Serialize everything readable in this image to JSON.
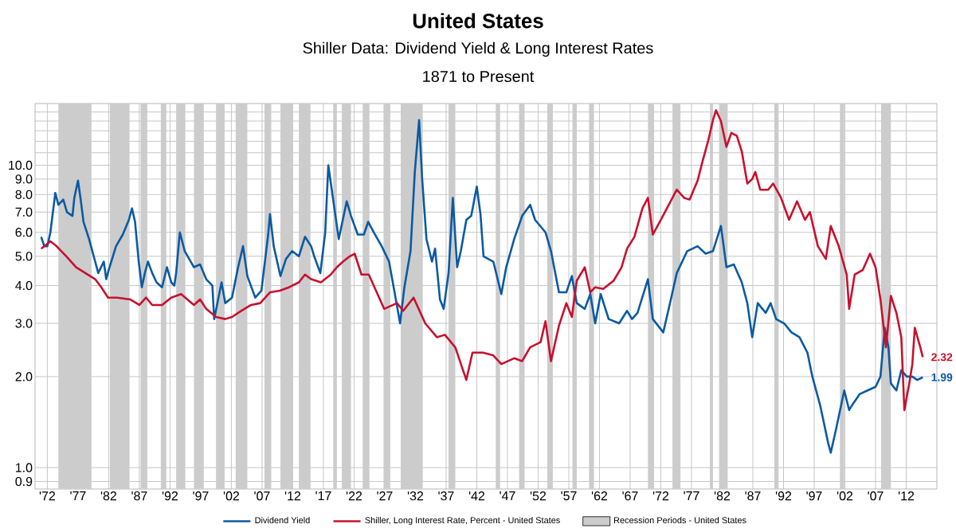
{
  "chart_data": {
    "type": "line",
    "title": "United States",
    "subtitle": "Shiller Data: Dividend Yield & Long Interest Rates",
    "annotations": [
      "1871 to Present",
      {
        "text": "2.32",
        "x": 2014.7,
        "y": 2.32
      },
      {
        "text": "1.99",
        "x": 2014.7,
        "y": 1.99
      }
    ],
    "log": "y",
    "grid": true,
    "legend": "bottom",
    "marker": "none",
    "line_style": "solid",
    "xlim": [
      1870,
      2017
    ],
    "xticks": [
      {
        "value": 1872,
        "label": "'72"
      },
      {
        "value": 1877,
        "label": "'77"
      },
      {
        "value": 1882,
        "label": "'82"
      },
      {
        "value": 1887,
        "label": "'87"
      },
      {
        "value": 1892,
        "label": "'92"
      },
      {
        "value": 1897,
        "label": "'97"
      },
      {
        "value": 1902,
        "label": "'02"
      },
      {
        "value": 1907,
        "label": "'07"
      },
      {
        "value": 1912,
        "label": "'12"
      },
      {
        "value": 1917,
        "label": "'17"
      },
      {
        "value": 1922,
        "label": "'22"
      },
      {
        "value": 1927,
        "label": "'27"
      },
      {
        "value": 1932,
        "label": "'32"
      },
      {
        "value": 1937,
        "label": "'37"
      },
      {
        "value": 1942,
        "label": "'42"
      },
      {
        "value": 1947,
        "label": "'47"
      },
      {
        "value": 1952,
        "label": "'52"
      },
      {
        "value": 1957,
        "label": "'57"
      },
      {
        "value": 1962,
        "label": "'62"
      },
      {
        "value": 1967,
        "label": "'67"
      },
      {
        "value": 1972,
        "label": "'72"
      },
      {
        "value": 1977,
        "label": "'77"
      },
      {
        "value": 1982,
        "label": "'82"
      },
      {
        "value": 1987,
        "label": "'87"
      },
      {
        "value": 1992,
        "label": "'92"
      },
      {
        "value": 1997,
        "label": "'97"
      },
      {
        "value": 2002,
        "label": "'02"
      },
      {
        "value": 2007,
        "label": "'07"
      },
      {
        "value": 2012,
        "label": "'12"
      }
    ],
    "ylim": [
      0.85,
      16
    ],
    "yticks": [
      0.9,
      {
        "value": 1,
        "label": "1.0"
      },
      {
        "value": 2,
        "label": "2.0"
      },
      {
        "value": 3,
        "label": "3.0"
      },
      {
        "value": 4,
        "label": "4.0"
      },
      {
        "value": 5,
        "label": "5.0"
      },
      {
        "value": 6,
        "label": "6.0"
      },
      {
        "value": 7,
        "label": "7.0"
      },
      {
        "value": 8,
        "label": "8.0"
      },
      {
        "value": 9,
        "label": "9.0"
      },
      {
        "value": 10,
        "label": "10.0"
      },
      {
        "value": 11,
        "label": null
      },
      {
        "value": 12,
        "label": null
      },
      {
        "value": 13,
        "label": null
      },
      {
        "value": 14,
        "label": null
      },
      {
        "value": 15,
        "label": null
      }
    ],
    "series": [
      {
        "name": "Dividend Yield",
        "color": "#0b5aa2",
        "x": [
          1871.0,
          1871.5,
          1872.0,
          1872.5,
          1873.3,
          1873.8,
          1874.6,
          1875.2,
          1876.1,
          1876.4,
          1877.0,
          1877.4,
          1877.9,
          1878.8,
          1879.8,
          1880.3,
          1881.2,
          1881.6,
          1882.0,
          1883.2,
          1884.3,
          1885.3,
          1885.8,
          1886.3,
          1886.9,
          1887.4,
          1887.9,
          1888.4,
          1889.1,
          1889.8,
          1890.7,
          1891.5,
          1892.2,
          1892.7,
          1893.0,
          1893.6,
          1894.4,
          1895.9,
          1896.9,
          1897.9,
          1898.9,
          1899.2,
          1900.4,
          1901.0,
          1902.1,
          1903.1,
          1903.9,
          1904.6,
          1905.9,
          1906.9,
          1908.0,
          1908.3,
          1908.9,
          1910.0,
          1910.9,
          1911.9,
          1913.0,
          1914.0,
          1915.0,
          1915.5,
          1916.5,
          1917.3,
          1917.8,
          1919.5,
          1920.8,
          1921.5,
          1922.6,
          1923.6,
          1924.3,
          1925.2,
          1926.5,
          1927.7,
          1928.6,
          1929.5,
          1930.2,
          1931.2,
          1931.9,
          1932.6,
          1933.1,
          1933.8,
          1934.7,
          1935.2,
          1936.0,
          1936.6,
          1937.4,
          1938.1,
          1938.8,
          1939.4,
          1940.3,
          1941.1,
          1942.0,
          1942.6,
          1943.1,
          1944.7,
          1946.0,
          1946.8,
          1948.1,
          1949.4,
          1950.7,
          1951.5,
          1953.2,
          1954.1,
          1955.4,
          1956.6,
          1957.5,
          1958.3,
          1959.6,
          1960.5,
          1961.3,
          1962.2,
          1963.5,
          1965.2,
          1966.5,
          1967.3,
          1968.2,
          1969.9,
          1970.7,
          1972.4,
          1973.7,
          1974.6,
          1976.3,
          1978.0,
          1979.3,
          1980.5,
          1981.8,
          1982.7,
          1983.9,
          1985.2,
          1986.1,
          1986.9,
          1987.8,
          1989.1,
          1989.9,
          1990.8,
          1992.1,
          1993.3,
          1994.6,
          1995.9,
          1996.7,
          1998.0,
          1999.3,
          1999.7,
          2000.6,
          2001.9,
          2002.7,
          2003.1,
          2004.4,
          2005.7,
          2007.0,
          2007.8,
          2008.5,
          2009.1,
          2009.5,
          2010.4,
          2011.2,
          2012.1,
          2013.0,
          2013.8,
          2014.7
        ],
        "values": [
          5.8,
          5.4,
          5.4,
          6.0,
          8.1,
          7.4,
          7.7,
          7.0,
          6.8,
          7.8,
          8.9,
          7.8,
          6.5,
          5.7,
          4.8,
          4.4,
          4.8,
          4.2,
          4.5,
          5.4,
          5.9,
          6.6,
          7.2,
          6.5,
          4.8,
          3.95,
          4.4,
          4.8,
          4.4,
          4.1,
          3.95,
          4.6,
          4.1,
          4.0,
          4.4,
          6.0,
          5.2,
          4.6,
          4.7,
          4.2,
          4.0,
          3.1,
          4.1,
          3.5,
          3.65,
          4.6,
          5.4,
          4.3,
          3.65,
          3.85,
          5.9,
          6.9,
          5.4,
          4.3,
          4.9,
          5.2,
          5.0,
          5.8,
          5.4,
          5.0,
          4.4,
          6.0,
          10.0,
          5.7,
          7.6,
          6.8,
          5.9,
          5.9,
          6.5,
          6.0,
          5.4,
          4.8,
          3.8,
          3.0,
          3.95,
          5.2,
          9.5,
          14.1,
          9.0,
          5.7,
          4.8,
          5.3,
          3.6,
          3.35,
          4.4,
          7.8,
          4.6,
          5.2,
          6.6,
          6.8,
          8.5,
          6.9,
          5.0,
          4.8,
          3.75,
          4.6,
          5.7,
          6.8,
          7.4,
          6.6,
          6.0,
          5.2,
          3.8,
          3.8,
          4.3,
          3.5,
          3.35,
          3.75,
          3.0,
          3.75,
          3.1,
          3.0,
          3.3,
          3.1,
          3.25,
          4.2,
          3.1,
          2.8,
          3.65,
          4.4,
          5.2,
          5.4,
          5.1,
          5.2,
          6.3,
          4.6,
          4.7,
          4.1,
          3.5,
          2.7,
          3.5,
          3.25,
          3.5,
          3.1,
          3.0,
          2.8,
          2.7,
          2.4,
          2.0,
          1.6,
          1.2,
          1.12,
          1.35,
          1.8,
          1.55,
          1.6,
          1.75,
          1.8,
          1.85,
          2.0,
          2.9,
          2.5,
          1.9,
          1.8,
          2.1,
          2.0,
          2.0,
          1.95,
          1.99
        ]
      },
      {
        "name": "Shiller, Long Interest Rate, Percent - United States",
        "color": "#c8102e",
        "x": [
          1871.0,
          1872.5,
          1873.5,
          1875.1,
          1876.7,
          1878.2,
          1879.8,
          1880.8,
          1881.9,
          1883.4,
          1885.5,
          1887.0,
          1888.1,
          1889.1,
          1890.7,
          1892.2,
          1893.8,
          1895.9,
          1896.9,
          1897.9,
          1899.5,
          1901.0,
          1902.1,
          1903.6,
          1905.2,
          1906.7,
          1908.3,
          1909.9,
          1911.4,
          1913.0,
          1914.0,
          1915.0,
          1916.6,
          1918.2,
          1919.2,
          1920.2,
          1921.3,
          1922.1,
          1923.2,
          1924.4,
          1926.9,
          1929.0,
          1930.0,
          1931.7,
          1933.6,
          1935.5,
          1936.8,
          1938.5,
          1940.3,
          1941.3,
          1943.0,
          1944.7,
          1946.0,
          1948.1,
          1949.4,
          1950.7,
          1952.4,
          1953.2,
          1954.1,
          1955.4,
          1956.6,
          1957.5,
          1958.3,
          1959.6,
          1960.5,
          1961.3,
          1962.6,
          1964.3,
          1965.6,
          1966.5,
          1967.7,
          1969.0,
          1969.9,
          1970.7,
          1972.0,
          1973.3,
          1974.6,
          1975.8,
          1976.7,
          1978.0,
          1978.8,
          1979.7,
          1980.5,
          1981.0,
          1981.8,
          1982.7,
          1983.5,
          1984.4,
          1985.2,
          1986.1,
          1986.9,
          1987.4,
          1988.2,
          1989.5,
          1990.3,
          1991.6,
          1992.9,
          1994.2,
          1995.5,
          1996.3,
          1997.6,
          1998.9,
          1999.7,
          2001.0,
          2002.3,
          2002.7,
          2003.6,
          2004.9,
          2006.1,
          2007.0,
          2007.8,
          2008.7,
          2009.5,
          2010.4,
          2011.2,
          2011.7,
          2012.5,
          2013.0,
          2013.4,
          2014.3,
          2014.7
        ],
        "values": [
          5.3,
          5.6,
          5.4,
          5.0,
          4.6,
          4.4,
          4.2,
          3.95,
          3.65,
          3.65,
          3.6,
          3.45,
          3.65,
          3.45,
          3.45,
          3.65,
          3.75,
          3.45,
          3.6,
          3.35,
          3.15,
          3.1,
          3.15,
          3.3,
          3.45,
          3.5,
          3.8,
          3.85,
          3.95,
          4.1,
          4.35,
          4.2,
          4.1,
          4.35,
          4.6,
          4.8,
          5.0,
          5.1,
          4.35,
          4.35,
          3.35,
          3.5,
          3.3,
          3.65,
          3.0,
          2.7,
          2.75,
          2.5,
          1.95,
          2.4,
          2.4,
          2.35,
          2.2,
          2.3,
          2.25,
          2.5,
          2.6,
          3.05,
          2.25,
          2.95,
          3.5,
          3.15,
          4.15,
          4.6,
          3.8,
          3.95,
          3.9,
          4.15,
          4.6,
          5.3,
          5.8,
          7.2,
          7.8,
          5.9,
          6.6,
          7.4,
          8.3,
          7.8,
          7.7,
          8.9,
          10.3,
          12.0,
          14.1,
          15.2,
          14.0,
          11.5,
          12.8,
          12.5,
          11.1,
          8.7,
          9.0,
          9.5,
          8.3,
          8.3,
          8.7,
          7.8,
          6.6,
          7.6,
          6.6,
          7.0,
          5.4,
          4.9,
          6.3,
          5.4,
          4.35,
          3.35,
          4.35,
          4.5,
          5.1,
          4.6,
          3.6,
          2.5,
          3.7,
          3.25,
          2.7,
          1.55,
          1.9,
          2.2,
          2.9,
          2.5,
          2.32
        ]
      }
    ],
    "bands": [
      {
        "axis": "x",
        "from": 1873.8,
        "to": 1879.2,
        "label": "Recession Periods - United States",
        "color": "#cccccc"
      },
      {
        "axis": "x",
        "from": 1882.2,
        "to": 1885.4,
        "color": "#cccccc"
      },
      {
        "axis": "x",
        "from": 1887.2,
        "to": 1888.3,
        "color": "#cccccc"
      },
      {
        "axis": "x",
        "from": 1890.5,
        "to": 1891.4,
        "color": "#cccccc"
      },
      {
        "axis": "x",
        "from": 1893.0,
        "to": 1894.5,
        "color": "#cccccc"
      },
      {
        "axis": "x",
        "from": 1895.9,
        "to": 1897.5,
        "color": "#cccccc"
      },
      {
        "axis": "x",
        "from": 1899.5,
        "to": 1900.9,
        "color": "#cccccc"
      },
      {
        "axis": "x",
        "from": 1902.7,
        "to": 1904.6,
        "color": "#cccccc"
      },
      {
        "axis": "x",
        "from": 1907.4,
        "to": 1908.5,
        "color": "#cccccc"
      },
      {
        "axis": "x",
        "from": 1910.0,
        "to": 1912.0,
        "color": "#cccccc"
      },
      {
        "axis": "x",
        "from": 1913.0,
        "to": 1914.9,
        "color": "#cccccc"
      },
      {
        "axis": "x",
        "from": 1918.6,
        "to": 1919.2,
        "color": "#cccccc"
      },
      {
        "axis": "x",
        "from": 1920.0,
        "to": 1921.5,
        "color": "#cccccc"
      },
      {
        "axis": "x",
        "from": 1923.4,
        "to": 1924.5,
        "color": "#cccccc"
      },
      {
        "axis": "x",
        "from": 1926.8,
        "to": 1927.9,
        "color": "#cccccc"
      },
      {
        "axis": "x",
        "from": 1929.6,
        "to": 1933.2,
        "color": "#cccccc"
      },
      {
        "axis": "x",
        "from": 1937.4,
        "to": 1938.5,
        "color": "#cccccc"
      },
      {
        "axis": "x",
        "from": 1945.1,
        "to": 1945.8,
        "color": "#cccccc"
      },
      {
        "axis": "x",
        "from": 1948.9,
        "to": 1949.8,
        "color": "#cccccc"
      },
      {
        "axis": "x",
        "from": 1953.5,
        "to": 1954.4,
        "color": "#cccccc"
      },
      {
        "axis": "x",
        "from": 1957.6,
        "to": 1958.3,
        "color": "#cccccc"
      },
      {
        "axis": "x",
        "from": 1960.3,
        "to": 1961.1,
        "color": "#cccccc"
      },
      {
        "axis": "x",
        "from": 1969.9,
        "to": 1970.9,
        "color": "#cccccc"
      },
      {
        "axis": "x",
        "from": 1973.9,
        "to": 1975.2,
        "color": "#cccccc"
      },
      {
        "axis": "x",
        "from": 1980.0,
        "to": 1980.5,
        "color": "#cccccc"
      },
      {
        "axis": "x",
        "from": 1981.5,
        "to": 1982.9,
        "color": "#cccccc"
      },
      {
        "axis": "x",
        "from": 1990.5,
        "to": 1991.2,
        "color": "#cccccc"
      },
      {
        "axis": "x",
        "from": 2001.2,
        "to": 2001.9,
        "color": "#cccccc"
      },
      {
        "axis": "x",
        "from": 2007.9,
        "to": 2009.5,
        "color": "#cccccc"
      }
    ]
  }
}
